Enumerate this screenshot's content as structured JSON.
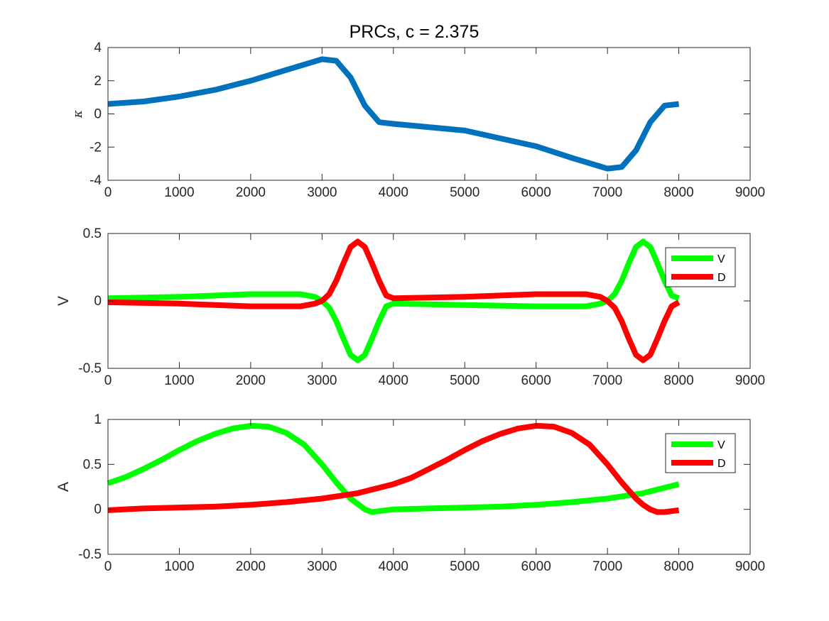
{
  "figure_title": "PRCs, c = 2.375",
  "chart_data": [
    {
      "type": "line",
      "title": "PRCs, c = 2.375",
      "xlabel": "",
      "ylabel": "κ",
      "xlim": [
        0,
        9000
      ],
      "ylim": [
        -4,
        4
      ],
      "xticks": [
        0,
        1000,
        2000,
        3000,
        4000,
        5000,
        6000,
        7000,
        8000,
        9000
      ],
      "yticks": [
        -4,
        -2,
        0,
        2,
        4
      ],
      "grid": false,
      "legend": null,
      "series": [
        {
          "color": "#0072BD",
          "x": [
            0,
            500,
            1000,
            1500,
            2000,
            2500,
            3000,
            3200,
            3400,
            3600,
            3800,
            4000,
            5000,
            6000,
            6500,
            7000,
            7200,
            7400,
            7600,
            7800,
            8000
          ],
          "y": [
            0.6,
            0.75,
            1.05,
            1.45,
            2.0,
            2.65,
            3.3,
            3.2,
            2.2,
            0.5,
            -0.5,
            -0.6,
            -1.0,
            -1.95,
            -2.65,
            -3.3,
            -3.2,
            -2.2,
            -0.5,
            0.5,
            0.6
          ]
        }
      ]
    },
    {
      "type": "line",
      "title": "",
      "xlabel": "",
      "ylabel": "V",
      "xlim": [
        0,
        9000
      ],
      "ylim": [
        -0.5,
        0.5
      ],
      "xticks": [
        0,
        1000,
        2000,
        3000,
        4000,
        5000,
        6000,
        7000,
        8000,
        9000
      ],
      "yticks": [
        -0.5,
        0,
        0.5
      ],
      "grid": false,
      "legend": "top-right",
      "series": [
        {
          "name": "V",
          "color": "#00FF00",
          "x": [
            0,
            1000,
            2000,
            2700,
            2900,
            3000,
            3100,
            3200,
            3300,
            3400,
            3500,
            3600,
            3700,
            3800,
            3900,
            4000,
            5000,
            6000,
            6700,
            6900,
            7000,
            7100,
            7200,
            7300,
            7400,
            7500,
            7600,
            7700,
            7800,
            7900,
            8000
          ],
          "y": [
            0.02,
            0.03,
            0.05,
            0.05,
            0.03,
            0.0,
            -0.05,
            -0.15,
            -0.28,
            -0.4,
            -0.44,
            -0.4,
            -0.28,
            -0.15,
            -0.04,
            -0.02,
            -0.03,
            -0.04,
            -0.04,
            -0.02,
            0.0,
            0.05,
            0.15,
            0.28,
            0.4,
            0.44,
            0.4,
            0.28,
            0.15,
            0.04,
            0.02
          ]
        },
        {
          "name": "D",
          "color": "#FF0000",
          "x": [
            0,
            1000,
            2000,
            2700,
            2900,
            3000,
            3100,
            3200,
            3300,
            3400,
            3500,
            3600,
            3700,
            3800,
            3900,
            4000,
            5000,
            6000,
            6700,
            6900,
            7000,
            7100,
            7200,
            7300,
            7400,
            7500,
            7600,
            7700,
            7800,
            7900,
            8000
          ],
          "y": [
            -0.01,
            -0.02,
            -0.04,
            -0.04,
            -0.02,
            0.0,
            0.05,
            0.15,
            0.28,
            0.4,
            0.44,
            0.4,
            0.28,
            0.15,
            0.04,
            0.02,
            0.03,
            0.05,
            0.05,
            0.03,
            0.0,
            -0.05,
            -0.15,
            -0.28,
            -0.4,
            -0.44,
            -0.4,
            -0.28,
            -0.15,
            -0.04,
            -0.01
          ]
        }
      ]
    },
    {
      "type": "line",
      "title": "",
      "xlabel": "",
      "ylabel": "A",
      "xlim": [
        0,
        9000
      ],
      "ylim": [
        -0.5,
        1
      ],
      "xticks": [
        0,
        1000,
        2000,
        3000,
        4000,
        5000,
        6000,
        7000,
        8000,
        9000
      ],
      "yticks": [
        -0.5,
        0,
        0.5,
        1
      ],
      "grid": false,
      "legend": "top-right",
      "series": [
        {
          "name": "V",
          "color": "#00FF00",
          "x": [
            0,
            250,
            500,
            750,
            1000,
            1250,
            1500,
            1750,
            2000,
            2250,
            2500,
            2750,
            3000,
            3200,
            3400,
            3600,
            3700,
            3800,
            4000,
            4500,
            5000,
            5500,
            6000,
            6500,
            7000,
            7250,
            7500,
            7750,
            8000
          ],
          "y": [
            0.29,
            0.36,
            0.45,
            0.55,
            0.66,
            0.76,
            0.84,
            0.9,
            0.93,
            0.92,
            0.85,
            0.72,
            0.5,
            0.3,
            0.12,
            0.0,
            -0.03,
            -0.02,
            0.0,
            0.01,
            0.02,
            0.03,
            0.05,
            0.08,
            0.12,
            0.15,
            0.18,
            0.23,
            0.28
          ]
        },
        {
          "name": "D",
          "color": "#FF0000",
          "x": [
            0,
            500,
            1000,
            1500,
            2000,
            2500,
            3000,
            3500,
            4000,
            4250,
            4500,
            4750,
            5000,
            5250,
            5500,
            5750,
            6000,
            6250,
            6500,
            6750,
            7000,
            7200,
            7400,
            7500,
            7600,
            7700,
            7800,
            7900,
            8000
          ],
          "y": [
            -0.01,
            0.01,
            0.02,
            0.03,
            0.05,
            0.08,
            0.12,
            0.18,
            0.28,
            0.35,
            0.45,
            0.55,
            0.66,
            0.76,
            0.84,
            0.9,
            0.93,
            0.92,
            0.85,
            0.72,
            0.5,
            0.3,
            0.12,
            0.05,
            0.0,
            -0.03,
            -0.03,
            -0.02,
            -0.01
          ]
        }
      ]
    }
  ]
}
